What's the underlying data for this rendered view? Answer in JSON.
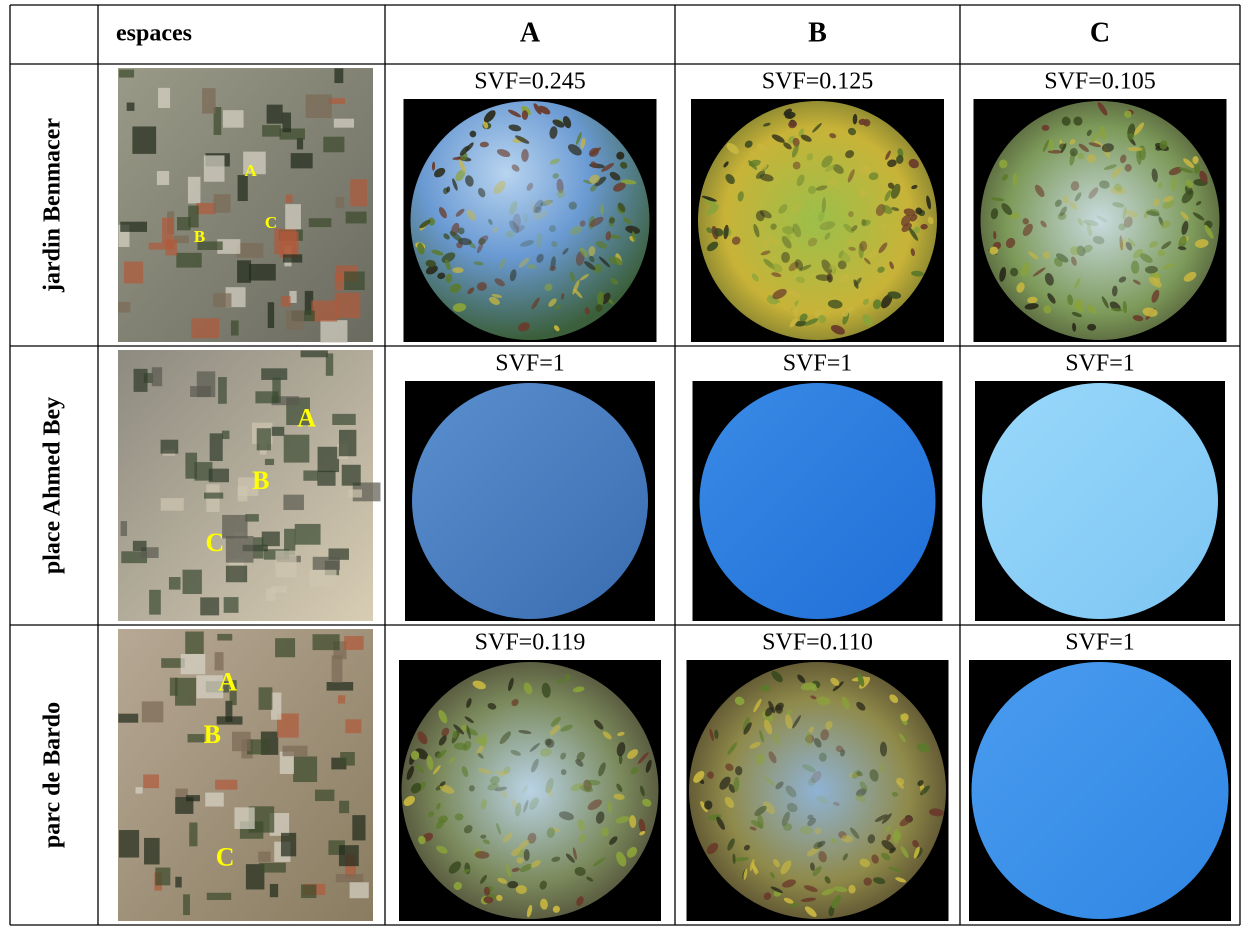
{
  "header": {
    "cells": [
      "espaces",
      "A",
      "B",
      "C"
    ]
  },
  "rows": [
    {
      "name": "jardin Benmacer",
      "map_labels": [
        "A",
        "B",
        "C"
      ],
      "svf": [
        "SVF=0.245",
        "SVF=0.125",
        "SVF=0.105"
      ]
    },
    {
      "name": "place Ahmed Bey",
      "map_labels": [
        "A",
        "B",
        "C"
      ],
      "svf": [
        "SVF=1",
        "SVF=1",
        "SVF=1"
      ]
    },
    {
      "name": "parc de Bardo",
      "map_labels": [
        "A",
        "B",
        "C"
      ],
      "svf": [
        "SVF=0.119",
        "SVF=0.110",
        "SVF=1"
      ]
    }
  ]
}
